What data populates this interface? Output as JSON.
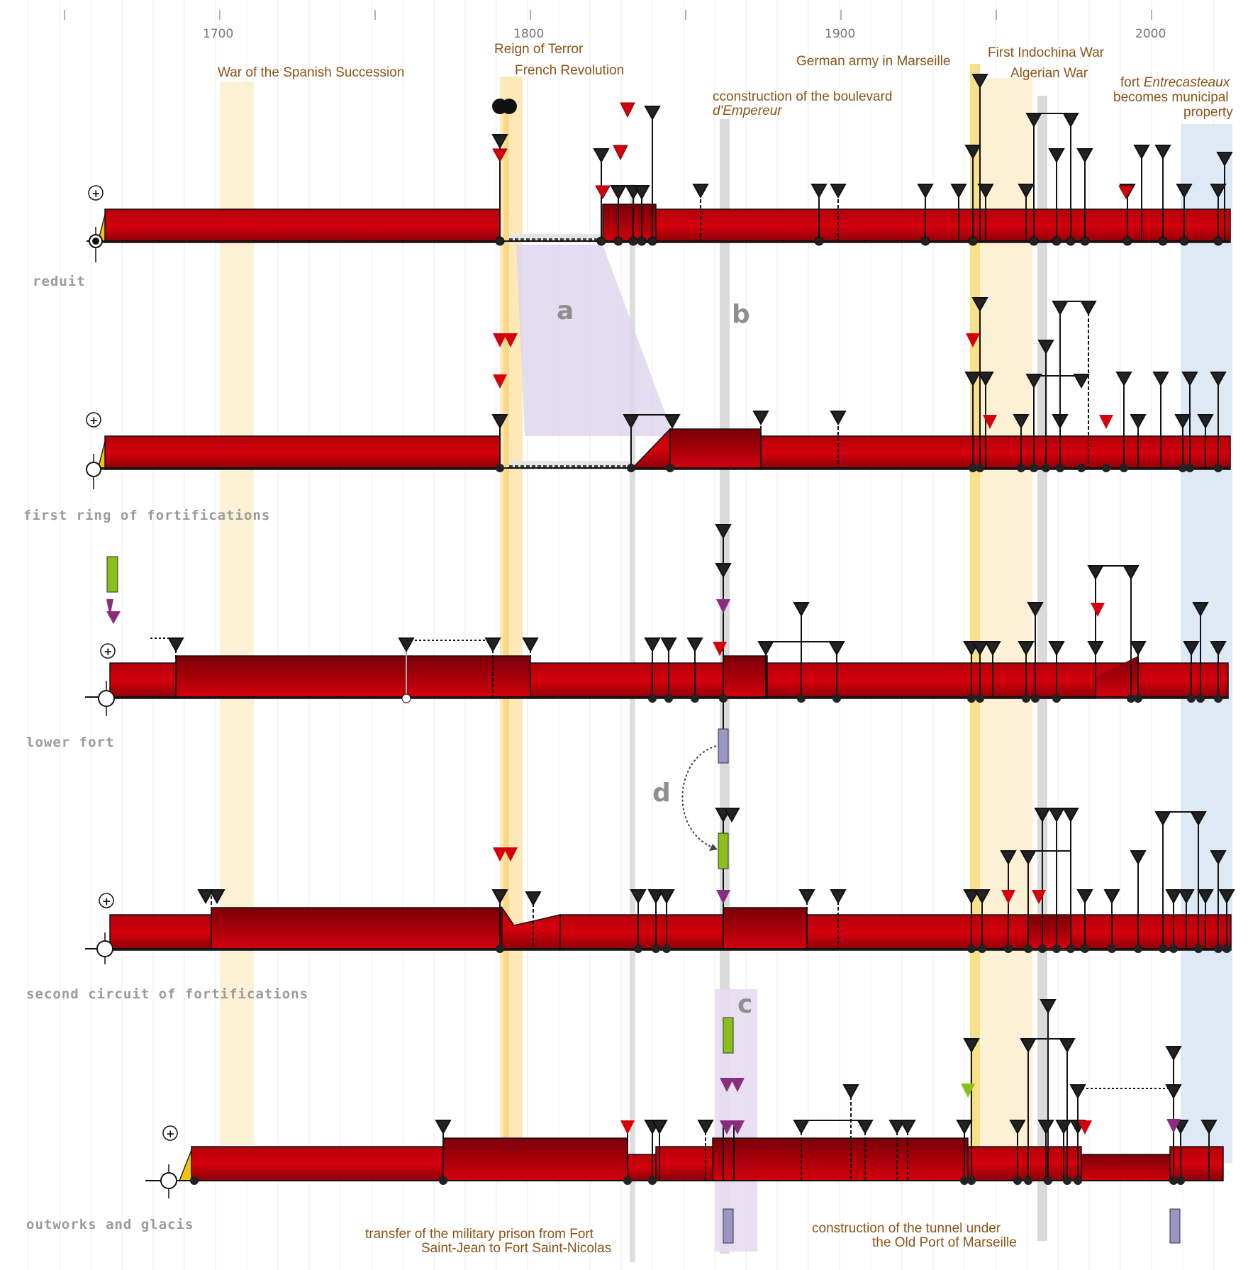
{
  "axis": {
    "ticks": [
      {
        "year": 1700,
        "label": "1700"
      },
      {
        "year": 1800,
        "label": "1800"
      },
      {
        "year": 1900,
        "label": "1900"
      },
      {
        "year": 2000,
        "label": "2000"
      }
    ],
    "minor_ticks": [
      1650,
      1700,
      1750,
      1800,
      1850,
      1900,
      1950,
      2000
    ]
  },
  "periods": [
    {
      "id": "spanish-succession",
      "label": "War of the Spanish Succession",
      "start": 1700,
      "end": 1710,
      "color": "#fdecc4"
    },
    {
      "id": "french-revolution",
      "label": "French Revolution",
      "start": 1789,
      "end": 1799,
      "color": "#fde2a3"
    },
    {
      "id": "reign-of-terror",
      "label": "Reign of Terror",
      "start": 1793,
      "end": 1794,
      "color": "#fcd27c"
    },
    {
      "id": "german-army",
      "label": "German army in Marseille",
      "start": 1942,
      "end": 1944,
      "color": "#f9e08a"
    },
    {
      "id": "indochina-war",
      "label": "First Indochina War",
      "start": 1946,
      "end": 1954,
      "color": "#fdecc4"
    },
    {
      "id": "algerian-war",
      "label": "Algerian War",
      "start": 1954,
      "end": 1962,
      "color": "#fdecc4"
    },
    {
      "id": "boulevard",
      "label": "cconstruction of the boulevard d'Empereur",
      "start": 1862,
      "end": 1864,
      "color": "#d8d8d8"
    },
    {
      "id": "municipal",
      "label": "fort Entrecasteaux becomes municipal property",
      "start": 2010,
      "end": 2025,
      "color": "#dce8f5"
    }
  ],
  "event_labels": {
    "spanish": "War of the Spanish Succession",
    "terror": "Reign of Terror",
    "revolution": "French Revolution",
    "german": "German army in Marseille",
    "indochina": "First Indochina War",
    "algerian": "Algerian War",
    "boulevard_1": "cconstruction of the boulevard",
    "boulevard_2": "d'Empereur",
    "municipal_1": "fort",
    "municipal_1_italic": "Entrecasteaux",
    "municipal_2": "becomes municipal",
    "municipal_3": "property",
    "prison_1": "transfer of the military prison from Fort",
    "prison_2": "Saint-Jean to Fort Saint-Nicolas",
    "tunnel_1": "construction of the tunnel  under",
    "tunnel_2": "the Old Port of Marseille"
  },
  "rows": [
    {
      "id": "reduit",
      "label": "reduit",
      "start": 1660,
      "end": 2024
    },
    {
      "id": "first-ring",
      "label": "first ring of fortifications",
      "start": 1660,
      "end": 2024
    },
    {
      "id": "lower-fort",
      "label": "lower fort",
      "start": 1662,
      "end": 2023
    },
    {
      "id": "second-circuit",
      "label": "second circuit of fortifications",
      "start": 1662,
      "end": 2023
    },
    {
      "id": "outworks",
      "label": "outworks and glacis",
      "start": 1690,
      "end": 2023
    }
  ],
  "markers": {
    "a": "a",
    "b": "b",
    "c": "c",
    "d": "d"
  },
  "symbols": {
    "plus": "+",
    "minus": "−",
    "tilde": "~",
    "question": "?"
  },
  "colors": {
    "bar": "#c8000a",
    "bar_dark": "#7a0008",
    "accent_yellow": "#f4c20d",
    "lilac": "#d9cfe8",
    "green": "#8bbf1e",
    "purple_box": "#9b97c4",
    "magenta": "#8a2d7f"
  }
}
